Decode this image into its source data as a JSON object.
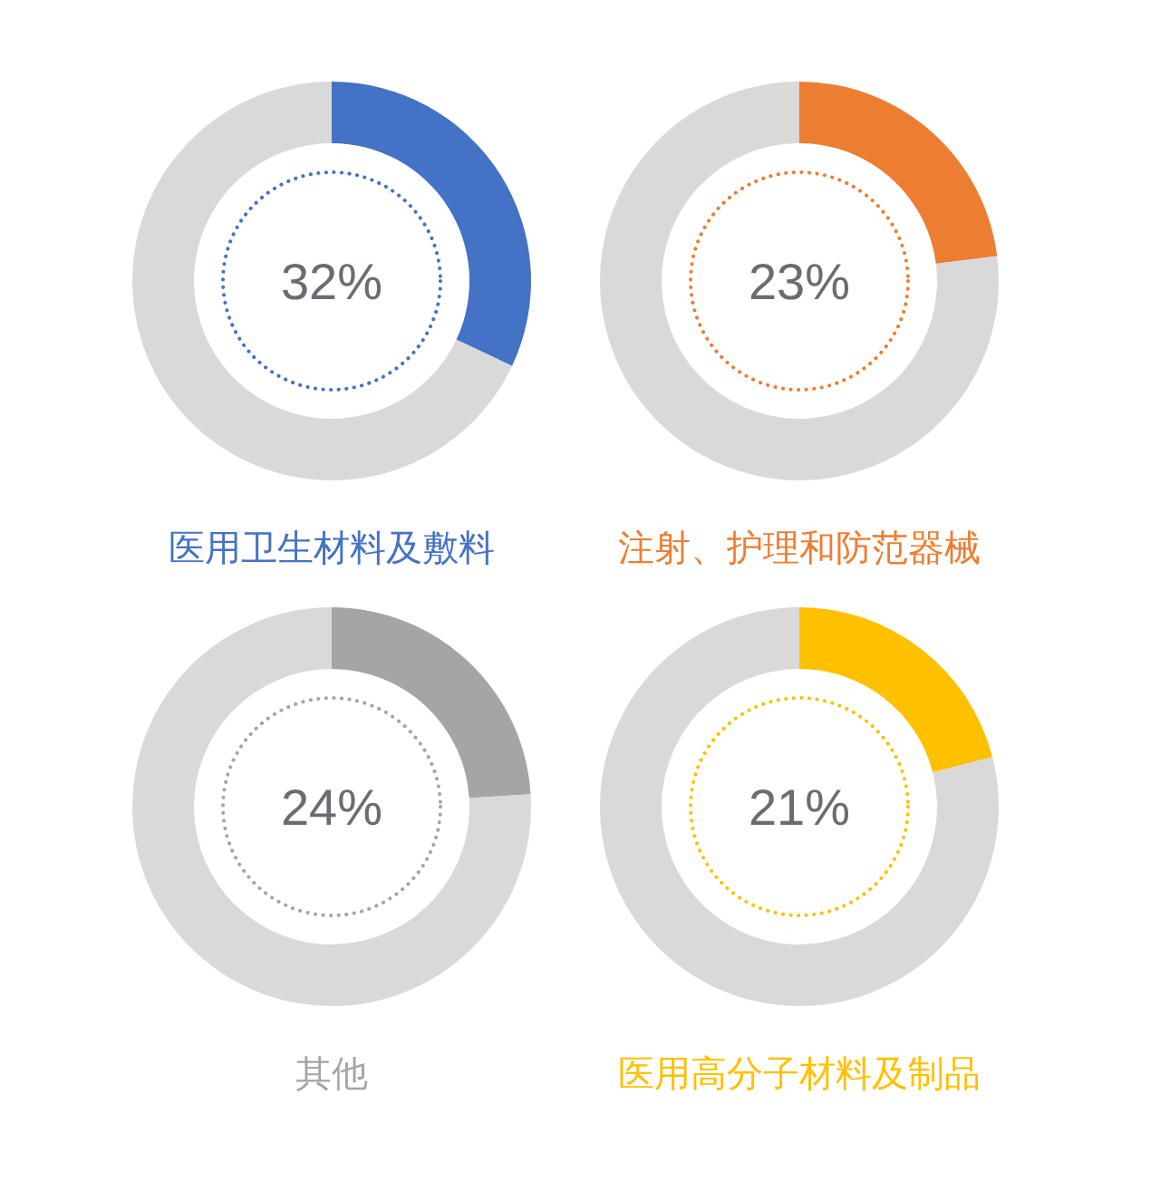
{
  "chart_data": [
    {
      "type": "donut",
      "title": "医用卫生材料及敷料",
      "annotations": [
        "32%"
      ],
      "categories": [
        null,
        null
      ],
      "values": [
        32,
        68
      ],
      "colors": [
        "#4472c4",
        "#d9d9d9"
      ]
    },
    {
      "type": "donut",
      "title": "注射、护理和防范器械",
      "annotations": [
        "23%"
      ],
      "categories": [
        null,
        null
      ],
      "values": [
        23,
        77
      ],
      "colors": [
        "#ed7d31",
        "#d9d9d9"
      ]
    },
    {
      "type": "donut",
      "title": "其他",
      "annotations": [
        "24%"
      ],
      "categories": [
        null,
        null
      ],
      "values": [
        24,
        76
      ],
      "colors": [
        "#a5a5a5",
        "#d9d9d9"
      ]
    },
    {
      "type": "donut",
      "title": "医用高分子材料及制品",
      "annotations": [
        "21%"
      ],
      "categories": [
        null,
        null
      ],
      "values": [
        21,
        79
      ],
      "colors": [
        "#ffc000",
        "#d9d9d9"
      ]
    }
  ]
}
